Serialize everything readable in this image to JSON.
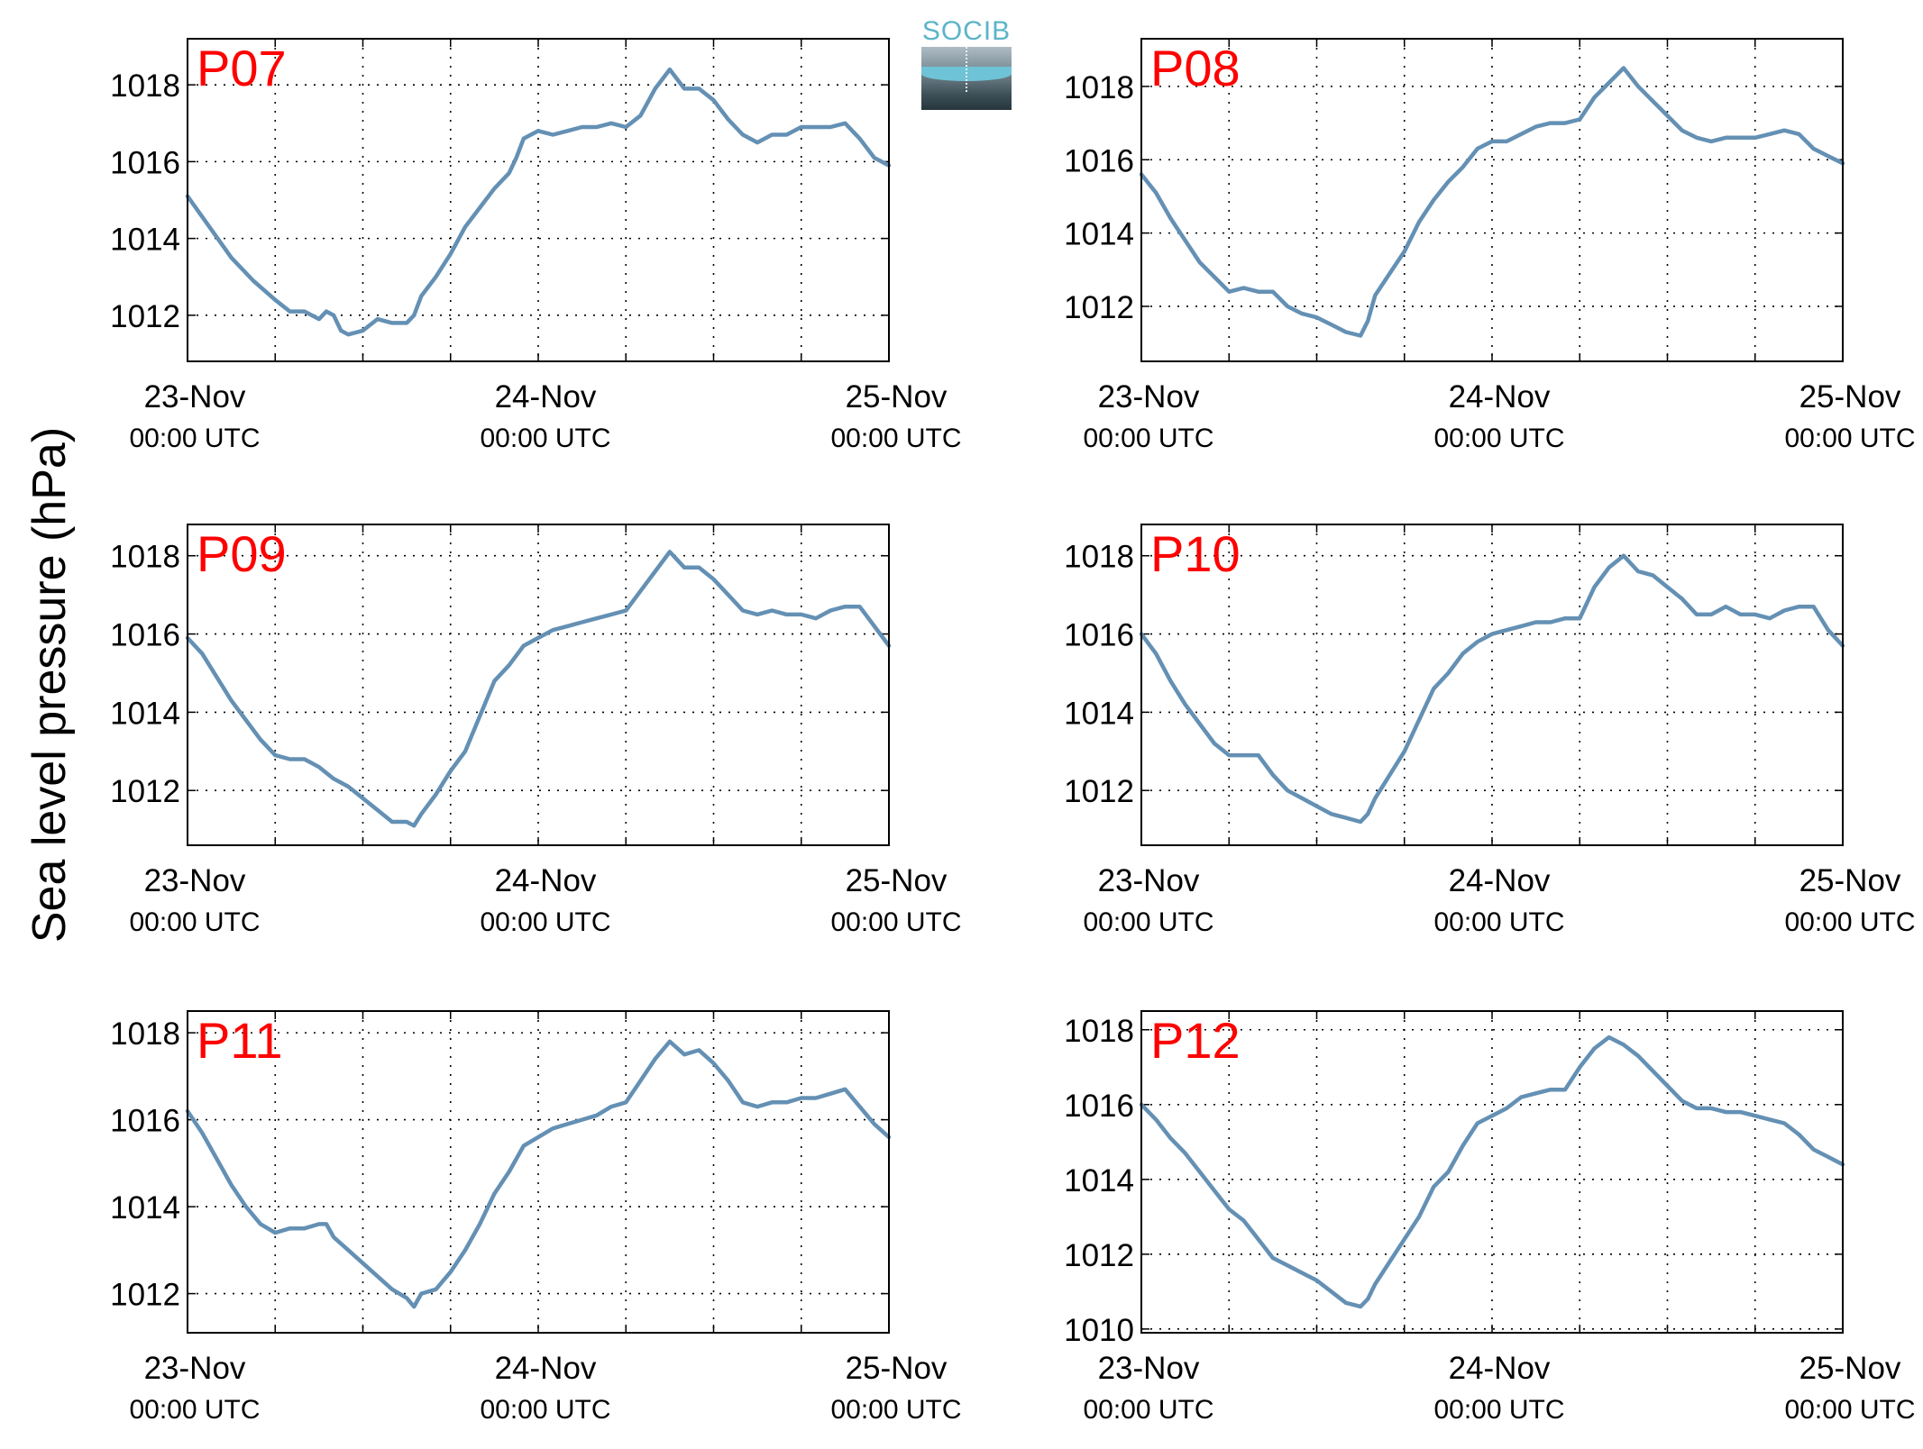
{
  "ylabel": "Sea level pressure (hPa)",
  "logo": {
    "text": "SOCIB"
  },
  "colors": {
    "line": "#6490b4",
    "panel_label": "#ff0000",
    "grid": "#000000"
  },
  "chart_data": [
    {
      "type": "line",
      "label": "P07",
      "xlim": [
        0,
        48
      ],
      "ylim": [
        1010.8,
        1019.2
      ],
      "x_ticks": [
        0,
        24,
        48
      ],
      "x_tick_labels": [
        [
          "23-Nov",
          "00:00 UTC"
        ],
        [
          "24-Nov",
          "00:00 UTC"
        ],
        [
          "25-Nov",
          "00:00 UTC"
        ]
      ],
      "x_grid": [
        6,
        12,
        18,
        30,
        36,
        42
      ],
      "y_ticks": [
        1012,
        1014,
        1016,
        1018
      ],
      "series": [
        {
          "x": [
            0,
            1.5,
            3,
            4.5,
            6,
            7,
            8,
            9,
            9.5,
            10,
            10.5,
            11,
            12,
            13,
            14,
            15,
            15.5,
            16,
            17,
            18,
            19,
            20,
            21,
            22,
            22.5,
            23,
            24,
            25,
            26,
            27,
            28,
            29,
            30,
            31,
            32,
            33,
            34,
            35,
            36,
            37,
            38,
            39,
            40,
            41,
            42,
            43,
            44,
            45,
            46,
            47,
            48
          ],
          "y": [
            1015.1,
            1014.3,
            1013.5,
            1012.9,
            1012.4,
            1012.1,
            1012.1,
            1011.9,
            1012.1,
            1012.0,
            1011.6,
            1011.5,
            1011.6,
            1011.9,
            1011.8,
            1011.8,
            1012.0,
            1012.5,
            1013.0,
            1013.6,
            1014.3,
            1014.8,
            1015.3,
            1015.7,
            1016.1,
            1016.6,
            1016.8,
            1016.7,
            1016.8,
            1016.9,
            1016.9,
            1017.0,
            1016.9,
            1017.2,
            1017.9,
            1018.4,
            1017.9,
            1017.9,
            1017.6,
            1017.1,
            1016.7,
            1016.5,
            1016.7,
            1016.7,
            1016.9,
            1016.9,
            1016.9,
            1017.0,
            1016.6,
            1016.1,
            1015.9
          ]
        }
      ]
    },
    {
      "type": "line",
      "label": "P08",
      "xlim": [
        0,
        48
      ],
      "ylim": [
        1010.5,
        1019.3
      ],
      "x_ticks": [
        0,
        24,
        48
      ],
      "x_tick_labels": [
        [
          "23-Nov",
          "00:00 UTC"
        ],
        [
          "24-Nov",
          "00:00 UTC"
        ],
        [
          "25-Nov",
          "00:00 UTC"
        ]
      ],
      "x_grid": [
        6,
        12,
        18,
        30,
        36,
        42
      ],
      "y_ticks": [
        1012,
        1014,
        1016,
        1018
      ],
      "series": [
        {
          "x": [
            0,
            1,
            2,
            3,
            4,
            5,
            6,
            7,
            8,
            9,
            10,
            11,
            12,
            13,
            14,
            15,
            15.5,
            16,
            17,
            18,
            19,
            20,
            21,
            22,
            23,
            24,
            25,
            26,
            27,
            28,
            29,
            30,
            31,
            32,
            33,
            34,
            35,
            36,
            37,
            38,
            39,
            40,
            41,
            42,
            43,
            44,
            45,
            46,
            47,
            48
          ],
          "y": [
            1015.6,
            1015.1,
            1014.4,
            1013.8,
            1013.2,
            1012.8,
            1012.4,
            1012.5,
            1012.4,
            1012.4,
            1012.0,
            1011.8,
            1011.7,
            1011.5,
            1011.3,
            1011.2,
            1011.6,
            1012.3,
            1012.9,
            1013.5,
            1014.3,
            1014.9,
            1015.4,
            1015.8,
            1016.3,
            1016.5,
            1016.5,
            1016.7,
            1016.9,
            1017.0,
            1017.0,
            1017.1,
            1017.7,
            1018.1,
            1018.5,
            1018.0,
            1017.6,
            1017.2,
            1016.8,
            1016.6,
            1016.5,
            1016.6,
            1016.6,
            1016.6,
            1016.7,
            1016.8,
            1016.7,
            1016.3,
            1016.1,
            1015.9
          ]
        }
      ]
    },
    {
      "type": "line",
      "label": "P09",
      "xlim": [
        0,
        48
      ],
      "ylim": [
        1010.6,
        1018.8
      ],
      "x_ticks": [
        0,
        24,
        48
      ],
      "x_tick_labels": [
        [
          "23-Nov",
          "00:00 UTC"
        ],
        [
          "24-Nov",
          "00:00 UTC"
        ],
        [
          "25-Nov",
          "00:00 UTC"
        ]
      ],
      "x_grid": [
        6,
        12,
        18,
        30,
        36,
        42
      ],
      "y_ticks": [
        1012,
        1014,
        1016,
        1018
      ],
      "series": [
        {
          "x": [
            0,
            1,
            2,
            3,
            4,
            5,
            6,
            7,
            8,
            9,
            10,
            11,
            12,
            13,
            14,
            15,
            15.5,
            16,
            17,
            18,
            19,
            20,
            21,
            22,
            23,
            24,
            25,
            26,
            27,
            28,
            29,
            30,
            31,
            32,
            33,
            34,
            35,
            36,
            37,
            38,
            39,
            40,
            41,
            42,
            43,
            44,
            45,
            46,
            47,
            48
          ],
          "y": [
            1015.9,
            1015.5,
            1014.9,
            1014.3,
            1013.8,
            1013.3,
            1012.9,
            1012.8,
            1012.8,
            1012.6,
            1012.3,
            1012.1,
            1011.8,
            1011.5,
            1011.2,
            1011.2,
            1011.1,
            1011.4,
            1011.9,
            1012.5,
            1013.0,
            1013.9,
            1014.8,
            1015.2,
            1015.7,
            1015.9,
            1016.1,
            1016.2,
            1016.3,
            1016.4,
            1016.5,
            1016.6,
            1017.1,
            1017.6,
            1018.1,
            1017.7,
            1017.7,
            1017.4,
            1017.0,
            1016.6,
            1016.5,
            1016.6,
            1016.5,
            1016.5,
            1016.4,
            1016.6,
            1016.7,
            1016.7,
            1016.2,
            1015.7
          ]
        }
      ]
    },
    {
      "type": "line",
      "label": "P10",
      "xlim": [
        0,
        48
      ],
      "ylim": [
        1010.6,
        1018.8
      ],
      "x_ticks": [
        0,
        24,
        48
      ],
      "x_tick_labels": [
        [
          "23-Nov",
          "00:00 UTC"
        ],
        [
          "24-Nov",
          "00:00 UTC"
        ],
        [
          "25-Nov",
          "00:00 UTC"
        ]
      ],
      "x_grid": [
        6,
        12,
        18,
        30,
        36,
        42
      ],
      "y_ticks": [
        1012,
        1014,
        1016,
        1018
      ],
      "series": [
        {
          "x": [
            0,
            1,
            2,
            3,
            4,
            5,
            6,
            7,
            8,
            9,
            10,
            11,
            12,
            13,
            14,
            15,
            15.5,
            16,
            17,
            18,
            19,
            20,
            21,
            22,
            23,
            24,
            25,
            26,
            27,
            28,
            29,
            30,
            31,
            32,
            33,
            34,
            35,
            36,
            37,
            38,
            39,
            40,
            41,
            42,
            43,
            44,
            45,
            46,
            47,
            48
          ],
          "y": [
            1016.0,
            1015.5,
            1014.8,
            1014.2,
            1013.7,
            1013.2,
            1012.9,
            1012.9,
            1012.9,
            1012.4,
            1012.0,
            1011.8,
            1011.6,
            1011.4,
            1011.3,
            1011.2,
            1011.4,
            1011.8,
            1012.4,
            1013.0,
            1013.8,
            1014.6,
            1015.0,
            1015.5,
            1015.8,
            1016.0,
            1016.1,
            1016.2,
            1016.3,
            1016.3,
            1016.4,
            1016.4,
            1017.2,
            1017.7,
            1018.0,
            1017.6,
            1017.5,
            1017.2,
            1016.9,
            1016.5,
            1016.5,
            1016.7,
            1016.5,
            1016.5,
            1016.4,
            1016.6,
            1016.7,
            1016.7,
            1016.1,
            1015.7
          ]
        }
      ]
    },
    {
      "type": "line",
      "label": "P11",
      "xlim": [
        0,
        48
      ],
      "ylim": [
        1011.1,
        1018.5
      ],
      "x_ticks": [
        0,
        24,
        48
      ],
      "x_tick_labels": [
        [
          "23-Nov",
          "00:00 UTC"
        ],
        [
          "24-Nov",
          "00:00 UTC"
        ],
        [
          "25-Nov",
          "00:00 UTC"
        ]
      ],
      "x_grid": [
        6,
        12,
        18,
        30,
        36,
        42
      ],
      "y_ticks": [
        1012,
        1014,
        1016,
        1018
      ],
      "series": [
        {
          "x": [
            0,
            1,
            2,
            3,
            4,
            5,
            6,
            7,
            8,
            9,
            9.5,
            10,
            11,
            12,
            13,
            14,
            15,
            15.5,
            16,
            17,
            18,
            19,
            20,
            21,
            22,
            23,
            24,
            25,
            26,
            27,
            28,
            29,
            30,
            31,
            32,
            33,
            34,
            35,
            36,
            37,
            38,
            39,
            40,
            41,
            42,
            43,
            44,
            45,
            46,
            47,
            48
          ],
          "y": [
            1016.2,
            1015.7,
            1015.1,
            1014.5,
            1014.0,
            1013.6,
            1013.4,
            1013.5,
            1013.5,
            1013.6,
            1013.6,
            1013.3,
            1013.0,
            1012.7,
            1012.4,
            1012.1,
            1011.9,
            1011.7,
            1012.0,
            1012.1,
            1012.5,
            1013.0,
            1013.6,
            1014.3,
            1014.8,
            1015.4,
            1015.6,
            1015.8,
            1015.9,
            1016.0,
            1016.1,
            1016.3,
            1016.4,
            1016.9,
            1017.4,
            1017.8,
            1017.5,
            1017.6,
            1017.3,
            1016.9,
            1016.4,
            1016.3,
            1016.4,
            1016.4,
            1016.5,
            1016.5,
            1016.6,
            1016.7,
            1016.3,
            1015.9,
            1015.6
          ]
        }
      ]
    },
    {
      "type": "line",
      "label": "P12",
      "xlim": [
        0,
        48
      ],
      "ylim": [
        1009.9,
        1018.5
      ],
      "x_ticks": [
        0,
        24,
        48
      ],
      "x_tick_labels": [
        [
          "23-Nov",
          "00:00 UTC"
        ],
        [
          "24-Nov",
          "00:00 UTC"
        ],
        [
          "25-Nov",
          "00:00 UTC"
        ]
      ],
      "x_grid": [
        6,
        12,
        18,
        30,
        36,
        42
      ],
      "y_ticks": [
        1010,
        1012,
        1014,
        1016,
        1018
      ],
      "series": [
        {
          "x": [
            0,
            1,
            2,
            3,
            4,
            5,
            6,
            7,
            8,
            9,
            10,
            11,
            12,
            13,
            14,
            15,
            15.5,
            16,
            17,
            18,
            19,
            20,
            21,
            22,
            23,
            24,
            25,
            26,
            27,
            28,
            29,
            30,
            31,
            32,
            33,
            34,
            35,
            36,
            37,
            38,
            39,
            40,
            41,
            42,
            43,
            44,
            45,
            46,
            47,
            48
          ],
          "y": [
            1016.0,
            1015.6,
            1015.1,
            1014.7,
            1014.2,
            1013.7,
            1013.2,
            1012.9,
            1012.4,
            1011.9,
            1011.7,
            1011.5,
            1011.3,
            1011.0,
            1010.7,
            1010.6,
            1010.8,
            1011.2,
            1011.8,
            1012.4,
            1013.0,
            1013.8,
            1014.2,
            1014.9,
            1015.5,
            1015.7,
            1015.9,
            1016.2,
            1016.3,
            1016.4,
            1016.4,
            1017.0,
            1017.5,
            1017.8,
            1017.6,
            1017.3,
            1016.9,
            1016.5,
            1016.1,
            1015.9,
            1015.9,
            1015.8,
            1015.8,
            1015.7,
            1015.6,
            1015.5,
            1015.2,
            1014.8,
            1014.6,
            1014.4
          ]
        }
      ]
    }
  ]
}
